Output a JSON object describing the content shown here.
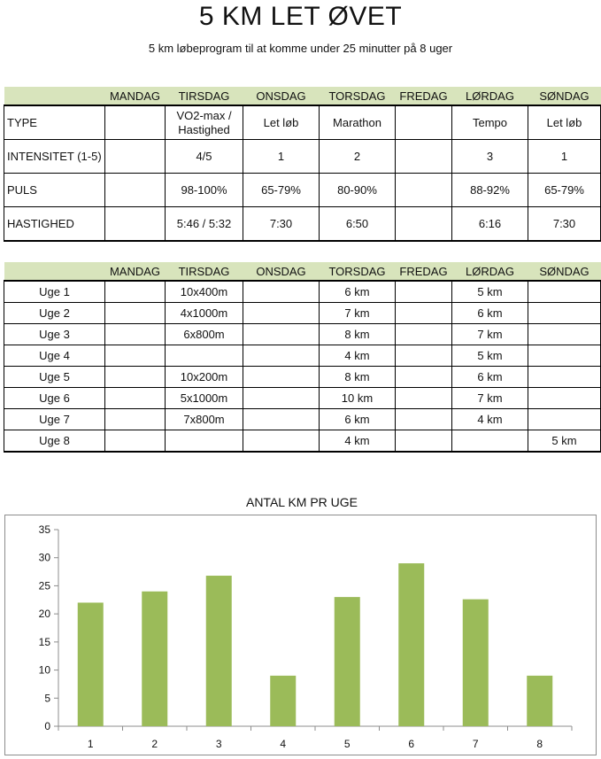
{
  "title": "5 KM LET ØVET",
  "subtitle": "5 km løbeprogram til at komme under 25 minutter på 8 uger",
  "days": [
    "",
    "MANDAG",
    "TIRSDAG",
    "ONSDAG",
    "TORSDAG",
    "FREDAG",
    "LØRDAG",
    "SØNDAG"
  ],
  "workouts": [
    {
      "label": "TYPE",
      "cells": [
        "",
        "VO2-max / Hastighed",
        "Let løb",
        "Marathon",
        "",
        "Tempo",
        "Let løb"
      ]
    },
    {
      "label": "INTENSITET (1-5)",
      "cells": [
        "",
        "4/5",
        "1",
        "2",
        "",
        "3",
        "1"
      ]
    },
    {
      "label": "PULS",
      "cells": [
        "",
        "98-100%",
        "65-79%",
        "80-90%",
        "",
        "88-92%",
        "65-79%"
      ]
    },
    {
      "label": "HASTIGHED",
      "cells": [
        "",
        "5:46 / 5:32",
        "7:30",
        "6:50",
        "",
        "6:16",
        "7:30"
      ]
    }
  ],
  "weeks": [
    {
      "label": "Uge 1",
      "cells": [
        "",
        "10x400m",
        "",
        "6 km",
        "",
        "5 km",
        ""
      ]
    },
    {
      "label": "Uge 2",
      "cells": [
        "",
        "4x1000m",
        "",
        "7 km",
        "",
        "6 km",
        ""
      ]
    },
    {
      "label": "Uge 3",
      "cells": [
        "",
        "6x800m",
        "",
        "8 km",
        "",
        "7 km",
        ""
      ]
    },
    {
      "label": "Uge 4",
      "cells": [
        "",
        "",
        "",
        "4 km",
        "",
        "5 km",
        ""
      ]
    },
    {
      "label": "Uge 5",
      "cells": [
        "",
        "10x200m",
        "",
        "8 km",
        "",
        "6 km",
        ""
      ]
    },
    {
      "label": "Uge 6",
      "cells": [
        "",
        "5x1000m",
        "",
        "10 km",
        "",
        "7 km",
        ""
      ]
    },
    {
      "label": "Uge 7",
      "cells": [
        "",
        "7x800m",
        "",
        "6 km",
        "",
        "4 km",
        ""
      ]
    },
    {
      "label": "Uge 8",
      "cells": [
        "",
        "",
        "",
        "4 km",
        "",
        "",
        "5 km"
      ]
    }
  ],
  "chart_data": {
    "type": "bar",
    "title": "ANTAL KM PR UGE",
    "categories": [
      "1",
      "2",
      "3",
      "4",
      "5",
      "6",
      "7",
      "8"
    ],
    "values": [
      22,
      24,
      26.8,
      9,
      23,
      29,
      22.6,
      9
    ],
    "ylim": [
      0,
      35
    ],
    "yticks": [
      0,
      5,
      10,
      15,
      20,
      25,
      30,
      35
    ],
    "grid": false,
    "legend": "none",
    "bar_color": "#9bbb59"
  }
}
